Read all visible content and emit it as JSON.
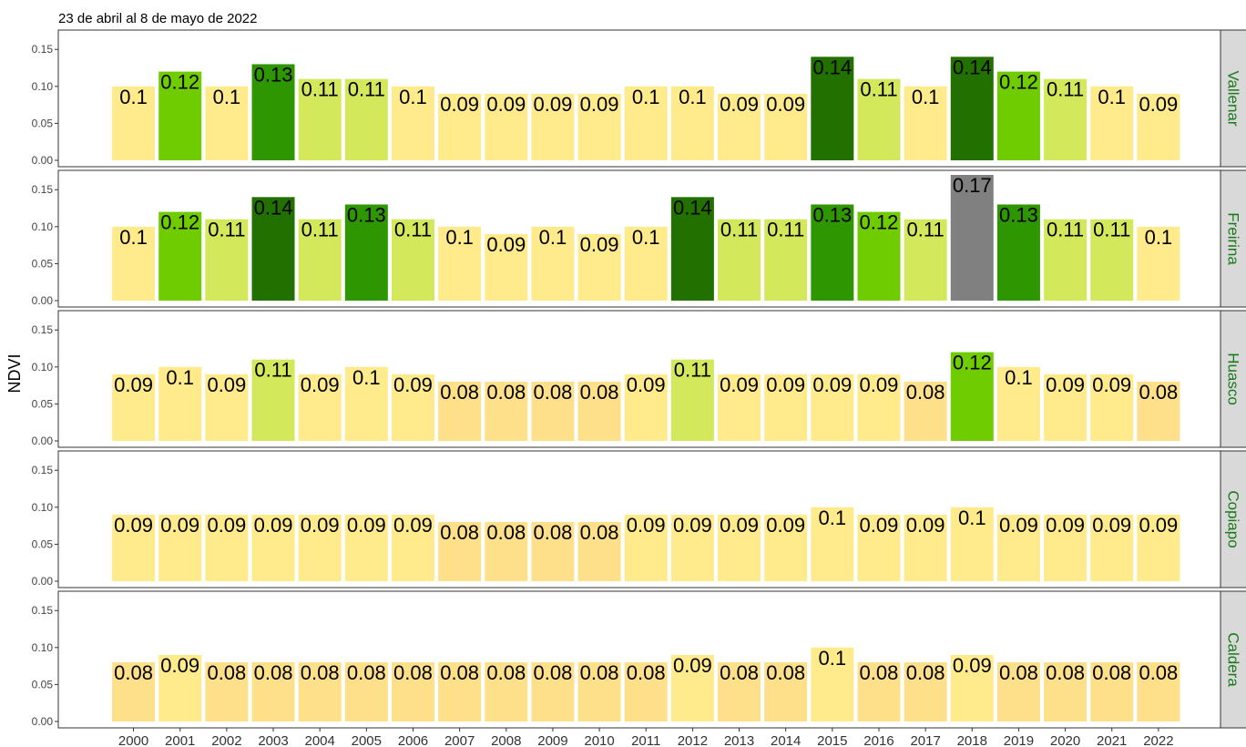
{
  "chart_data": {
    "type": "bar",
    "subtitle": "23 de abril al 8 de mayo de 2022",
    "ylabel": "NDVI",
    "xlabel": "",
    "ylim": [
      0,
      0.17
    ],
    "yticks": [
      "0.00",
      "0.05",
      "0.10",
      "0.15"
    ],
    "ytick_values": [
      0,
      0.05,
      0.1,
      0.15
    ],
    "grid": false,
    "categories": [
      "2000",
      "2001",
      "2002",
      "2003",
      "2004",
      "2005",
      "2006",
      "2007",
      "2008",
      "2009",
      "2010",
      "2011",
      "2012",
      "2013",
      "2014",
      "2015",
      "2016",
      "2017",
      "2018",
      "2019",
      "2020",
      "2021",
      "2022"
    ],
    "colors": {
      "0.08": "#FFE08A",
      "0.09": "#FFEB8C",
      "0.1": "#FFEB8C",
      "0.11": "#D4E85C",
      "0.12": "#6FCC00",
      "0.13": "#2E9600",
      "0.14": "#217000",
      "0.17": "#808080"
    },
    "panels": [
      {
        "name": "Vallenar",
        "values": [
          0.1,
          0.12,
          0.1,
          0.13,
          0.11,
          0.11,
          0.1,
          0.09,
          0.09,
          0.09,
          0.09,
          0.1,
          0.1,
          0.09,
          0.09,
          0.14,
          0.11,
          0.1,
          0.14,
          0.12,
          0.11,
          0.1,
          0.09
        ],
        "labels": [
          "0.1",
          "0.12",
          "0.1",
          "0.13",
          "0.11",
          "0.11",
          "0.1",
          "0.09",
          "0.09",
          "0.09",
          "0.09",
          "0.1",
          "0.1",
          "0.09",
          "0.09",
          "0.14",
          "0.11",
          "0.1",
          "0.14",
          "0.12",
          "0.11",
          "0.1",
          "0.09"
        ]
      },
      {
        "name": "Freirina",
        "values": [
          0.1,
          0.12,
          0.11,
          0.14,
          0.11,
          0.13,
          0.11,
          0.1,
          0.09,
          0.1,
          0.09,
          0.1,
          0.14,
          0.11,
          0.11,
          0.13,
          0.12,
          0.11,
          0.17,
          0.13,
          0.11,
          0.11,
          0.1
        ],
        "labels": [
          "0.1",
          "0.12",
          "0.11",
          "0.14",
          "0.11",
          "0.13",
          "0.11",
          "0.1",
          "0.09",
          "0.1",
          "0.09",
          "0.1",
          "0.14",
          "0.11",
          "0.11",
          "0.13",
          "0.12",
          "0.11",
          "0.17",
          "0.13",
          "0.11",
          "0.11",
          "0.1"
        ]
      },
      {
        "name": "Huasco",
        "values": [
          0.09,
          0.1,
          0.09,
          0.11,
          0.09,
          0.1,
          0.09,
          0.08,
          0.08,
          0.08,
          0.08,
          0.09,
          0.11,
          0.09,
          0.09,
          0.09,
          0.09,
          0.08,
          0.12,
          0.1,
          0.09,
          0.09,
          0.08
        ],
        "labels": [
          "0.09",
          "0.1",
          "0.09",
          "0.11",
          "0.09",
          "0.1",
          "0.09",
          "0.08",
          "0.08",
          "0.08",
          "0.08",
          "0.09",
          "0.11",
          "0.09",
          "0.09",
          "0.09",
          "0.09",
          "0.08",
          "0.12",
          "0.1",
          "0.09",
          "0.09",
          "0.08"
        ]
      },
      {
        "name": "Copiapo",
        "values": [
          0.09,
          0.09,
          0.09,
          0.09,
          0.09,
          0.09,
          0.09,
          0.08,
          0.08,
          0.08,
          0.08,
          0.09,
          0.09,
          0.09,
          0.09,
          0.1,
          0.09,
          0.09,
          0.1,
          0.09,
          0.09,
          0.09,
          0.09
        ],
        "labels": [
          "0.09",
          "0.09",
          "0.09",
          "0.09",
          "0.09",
          "0.09",
          "0.09",
          "0.08",
          "0.08",
          "0.08",
          "0.08",
          "0.09",
          "0.09",
          "0.09",
          "0.09",
          "0.1",
          "0.09",
          "0.09",
          "0.1",
          "0.09",
          "0.09",
          "0.09",
          "0.09"
        ]
      },
      {
        "name": "Caldera",
        "values": [
          0.08,
          0.09,
          0.08,
          0.08,
          0.08,
          0.08,
          0.08,
          0.08,
          0.08,
          0.08,
          0.08,
          0.08,
          0.09,
          0.08,
          0.08,
          0.1,
          0.08,
          0.08,
          0.09,
          0.08,
          0.08,
          0.08,
          0.08
        ],
        "labels": [
          "0.08",
          "0.09",
          "0.08",
          "0.08",
          "0.08",
          "0.08",
          "0.08",
          "0.08",
          "0.08",
          "0.08",
          "0.08",
          "0.08",
          "0.09",
          "0.08",
          "0.08",
          "0.1",
          "0.08",
          "0.08",
          "0.09",
          "0.08",
          "0.08",
          "0.08",
          "0.08"
        ]
      }
    ]
  }
}
